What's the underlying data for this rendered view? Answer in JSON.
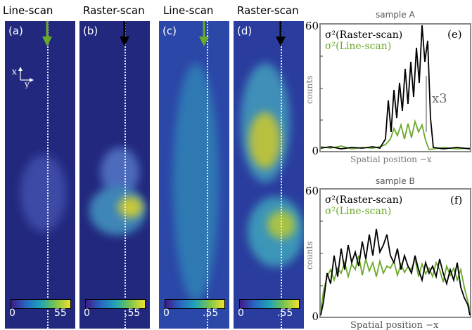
{
  "headers": [
    "Line-scan",
    "Raster-scan",
    "Line-scan",
    "Raster-scan"
  ],
  "panels": [
    {
      "label": "(a)",
      "cb_min": "0",
      "cb_max": "55"
    },
    {
      "label": "(b)",
      "cb_min": "0",
      "cb_max": ".55"
    },
    {
      "label": "(c)",
      "cb_min": "0",
      "cb_max": ".55"
    },
    {
      "label": "(d)",
      "cb_min": "0",
      "cb_max": ".55"
    }
  ],
  "axes_glyph": {
    "x": "x",
    "y": "y"
  },
  "graph_a": {
    "title": "sample A",
    "label": "(e)",
    "legend_raster": "σ²(Raster-scan)",
    "legend_line": "σ²(Line-scan)",
    "ylabel": "counts",
    "xlabel": "Spatial position −x",
    "ytick_top": "60",
    "ytick_bottom": "0",
    "annotation": "x3"
  },
  "graph_b": {
    "title": "sample B",
    "label": "(f)",
    "legend_raster": "σ²(Raster-scan)",
    "legend_line": "σ²(Line-scan)",
    "ylabel": "counts",
    "xlabel": "Spatial position −x",
    "ytick_top": "60",
    "ytick_bottom": "0"
  },
  "colors": {
    "line_scan": "#6aa92a",
    "raster_scan": "#000000",
    "panel_bg": "#22287e",
    "arrow_line": "#6aa92a",
    "arrow_raster": "#000000"
  }
}
